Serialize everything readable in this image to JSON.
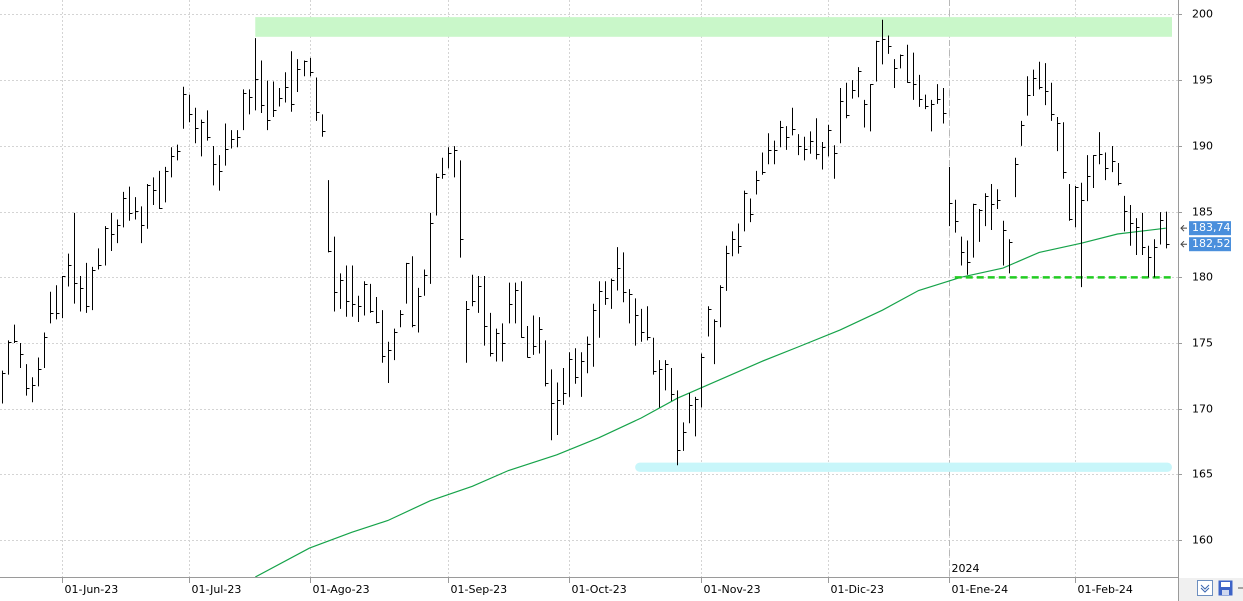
{
  "chart_data": {
    "type": "ohlc",
    "categories": [
      "2023-05-17",
      "2023-05-18",
      "2023-05-19",
      "2023-05-22",
      "2023-05-23",
      "2023-05-24",
      "2023-05-25",
      "2023-05-26",
      "2023-05-30",
      "2023-05-31",
      "2023-06-01",
      "2023-06-02",
      "2023-06-05",
      "2023-06-06",
      "2023-06-07",
      "2023-06-08",
      "2023-06-09",
      "2023-06-12",
      "2023-06-13",
      "2023-06-14",
      "2023-06-15",
      "2023-06-16",
      "2023-06-20",
      "2023-06-21",
      "2023-06-22",
      "2023-06-23",
      "2023-06-26",
      "2023-06-27",
      "2023-06-28",
      "2023-06-29",
      "2023-06-30",
      "2023-07-03",
      "2023-07-05",
      "2023-07-06",
      "2023-07-07",
      "2023-07-10",
      "2023-07-11",
      "2023-07-12",
      "2023-07-13",
      "2023-07-14",
      "2023-07-17",
      "2023-07-18",
      "2023-07-19",
      "2023-07-20",
      "2023-07-21",
      "2023-07-24",
      "2023-07-25",
      "2023-07-26",
      "2023-07-27",
      "2023-07-28",
      "2023-07-31",
      "2023-08-01",
      "2023-08-02",
      "2023-08-03",
      "2023-08-04",
      "2023-08-07",
      "2023-08-08",
      "2023-08-09",
      "2023-08-10",
      "2023-08-11",
      "2023-08-14",
      "2023-08-15",
      "2023-08-16",
      "2023-08-17",
      "2023-08-18",
      "2023-08-21",
      "2023-08-22",
      "2023-08-23",
      "2023-08-24",
      "2023-08-25",
      "2023-08-28",
      "2023-08-29",
      "2023-08-30",
      "2023-08-31",
      "2023-09-01",
      "2023-09-05",
      "2023-09-06",
      "2023-09-07",
      "2023-09-08",
      "2023-09-11",
      "2023-09-12",
      "2023-09-13",
      "2023-09-14",
      "2023-09-15",
      "2023-09-18",
      "2023-09-19",
      "2023-09-20",
      "2023-09-21",
      "2023-09-22",
      "2023-09-25",
      "2023-09-26",
      "2023-09-27",
      "2023-09-28",
      "2023-09-29",
      "2023-10-02",
      "2023-10-03",
      "2023-10-04",
      "2023-10-05",
      "2023-10-06",
      "2023-10-09",
      "2023-10-10",
      "2023-10-11",
      "2023-10-12",
      "2023-10-13",
      "2023-10-16",
      "2023-10-17",
      "2023-10-18",
      "2023-10-19",
      "2023-10-20",
      "2023-10-23",
      "2023-10-24",
      "2023-10-25",
      "2023-10-26",
      "2023-10-27",
      "2023-10-30",
      "2023-10-31",
      "2023-11-01",
      "2023-11-02",
      "2023-11-03",
      "2023-11-06",
      "2023-11-07",
      "2023-11-08",
      "2023-11-09",
      "2023-11-10",
      "2023-11-13",
      "2023-11-14",
      "2023-11-15",
      "2023-11-16",
      "2023-11-17",
      "2023-11-20",
      "2023-11-21",
      "2023-11-22",
      "2023-11-24",
      "2023-11-27",
      "2023-11-28",
      "2023-11-29",
      "2023-11-30",
      "2023-12-01",
      "2023-12-04",
      "2023-12-05",
      "2023-12-06",
      "2023-12-07",
      "2023-12-08",
      "2023-12-11",
      "2023-12-12",
      "2023-12-13",
      "2023-12-14",
      "2023-12-15",
      "2023-12-18",
      "2023-12-19",
      "2023-12-20",
      "2023-12-21",
      "2023-12-22",
      "2023-12-26",
      "2023-12-27",
      "2023-12-28",
      "2023-12-29",
      "2024-01-02",
      "2024-01-03",
      "2024-01-04",
      "2024-01-05",
      "2024-01-08",
      "2024-01-09",
      "2024-01-10",
      "2024-01-11",
      "2024-01-12",
      "2024-01-16",
      "2024-01-17",
      "2024-01-18",
      "2024-01-19",
      "2024-01-22",
      "2024-01-23",
      "2024-01-24",
      "2024-01-25",
      "2024-01-26",
      "2024-01-29",
      "2024-01-30",
      "2024-01-31",
      "2024-02-01",
      "2024-02-02",
      "2024-02-05",
      "2024-02-06",
      "2024-02-07",
      "2024-02-08",
      "2024-02-09",
      "2024-02-12",
      "2024-02-13",
      "2024-02-14",
      "2024-02-15",
      "2024-02-16",
      "2024-02-20",
      "2024-02-21",
      "2024-02-22",
      "2024-02-23"
    ],
    "high": [
      172.9,
      175.2,
      176.4,
      175.0,
      173.4,
      172.4,
      173.9,
      175.8,
      178.9,
      179.4,
      180.1,
      181.8,
      184.9,
      180.1,
      181.1,
      180.8,
      182.2,
      183.9,
      184.9,
      184.4,
      186.5,
      186.9,
      186.1,
      185.4,
      187.1,
      187.6,
      188.1,
      188.4,
      189.9,
      190.1,
      194.5,
      193.9,
      192.9,
      192.0,
      192.7,
      189.99,
      189.3,
      191.7,
      191.2,
      191.2,
      194.3,
      194.3,
      198.2,
      196.5,
      194.97,
      194.9,
      194.4,
      195.6,
      197.2,
      196.6,
      196.5,
      196.7,
      195.2,
      192.4,
      187.4,
      183.1,
      180.3,
      180.9,
      180.9,
      178.6,
      179.7,
      179.5,
      178.5,
      177.5,
      175.1,
      176.1,
      177.5,
      181.1,
      181.6,
      179.2,
      180.6,
      184.9,
      187.9,
      189.1,
      189.9,
      189.98,
      188.9,
      178.2,
      180.2,
      180.1,
      180.1,
      177.3,
      176.1,
      176.5,
      179.6,
      179.6,
      179.7,
      176.3,
      177.1,
      176.97,
      175.2,
      173.0,
      172.0,
      173.1,
      174.3,
      174.6,
      174.3,
      175.5,
      177.99,
      179.7,
      179.7,
      179.9,
      182.3,
      181.9,
      179.1,
      178.4,
      177.6,
      177.8,
      175.4,
      173.7,
      173.7,
      173.1,
      171.4,
      168.96,
      171.2,
      170.9,
      174.2,
      177.8,
      176.8,
      179.4,
      182.4,
      183.5,
      184.1,
      186.6,
      186.0,
      188.1,
      189.5,
      190.96,
      190.4,
      191.9,
      191.5,
      192.9,
      190.9,
      190.7,
      191.1,
      192.1,
      190.3,
      191.6,
      190.05,
      194.4,
      194.8,
      195.0,
      195.99,
      193.5,
      194.7,
      198.0,
      199.6,
      198.4,
      196.6,
      196.95,
      197.7,
      197.1,
      195.4,
      193.9,
      193.5,
      194.7,
      194.4,
      188.4,
      185.9,
      183.1,
      182.8,
      185.6,
      185.2,
      186.4,
      187.1,
      186.7,
      184.3,
      182.9,
      189.1,
      191.9,
      195.3,
      195.8,
      196.4,
      196.3,
      194.8,
      192.2,
      191.8,
      187.1,
      186.95,
      187.2,
      189.3,
      189.3,
      191.05,
      189.5,
      189.99,
      188.7,
      186.2,
      185.5,
      184.5,
      184.9,
      182.4,
      182.9,
      184.96,
      185.0
    ],
    "low": [
      170.4,
      172.6,
      175.0,
      173.1,
      171.0,
      170.5,
      171.7,
      173.1,
      176.5,
      176.8,
      176.9,
      179.3,
      178.0,
      177.4,
      177.3,
      177.5,
      180.6,
      180.9,
      182.0,
      182.6,
      183.8,
      184.3,
      184.4,
      182.6,
      183.7,
      185.5,
      185.2,
      185.7,
      187.6,
      188.9,
      191.3,
      191.8,
      190.2,
      189.2,
      190.4,
      187.0,
      186.6,
      188.5,
      189.8,
      189.9,
      191.2,
      192.4,
      192.7,
      192.5,
      191.2,
      192.2,
      193.0,
      193.3,
      192.6,
      194.1,
      195.3,
      195.3,
      191.9,
      190.7,
      181.9,
      177.4,
      177.6,
      177.0,
      177.0,
      176.6,
      177.1,
      177.3,
      176.5,
      173.5,
      171.96,
      173.7,
      176.2,
      178.0,
      176.2,
      175.8,
      178.6,
      179.5,
      184.7,
      187.5,
      188.3,
      187.6,
      181.5,
      173.5,
      177.8,
      177.3,
      174.8,
      173.98,
      173.6,
      173.6,
      176.5,
      176.5,
      175.4,
      173.9,
      174.1,
      174.2,
      171.7,
      167.6,
      168.0,
      170.3,
      170.9,
      171.9,
      170.9,
      172.7,
      173.2,
      175.4,
      177.9,
      177.6,
      179.0,
      178.1,
      176.5,
      174.8,
      175.1,
      175.2,
      172.6,
      170.1,
      171.4,
      170.6,
      165.7,
      166.8,
      168.9,
      167.9,
      170.1,
      175.5,
      173.4,
      176.2,
      178.97,
      181.6,
      181.8,
      183.5,
      184.2,
      186.3,
      187.8,
      188.6,
      188.6,
      189.9,
      189.7,
      190.8,
      189.3,
      188.9,
      189.4,
      188.97,
      188.2,
      189.2,
      187.5,
      190.2,
      192.1,
      193.6,
      193.7,
      191.4,
      191.1,
      194.9,
      196.2,
      197.0,
      194.4,
      195.9,
      194.8,
      193.5,
      192.97,
      192.8,
      191.1,
      193.2,
      191.7,
      183.9,
      183.4,
      180.9,
      180.2,
      181.5,
      182.7,
      183.9,
      183.6,
      185.2,
      180.9,
      180.3,
      186.1,
      190.0,
      192.3,
      193.8,
      194.3,
      193.1,
      191.9,
      189.6,
      187.5,
      184.3,
      183.8,
      179.25,
      185.8,
      186.8,
      188.6,
      187.4,
      188.0,
      187.0,
      183.5,
      182.4,
      181.7,
      181.7,
      180.0,
      180.0,
      182.5,
      182.2
    ],
    "close": [
      172.69,
      175.05,
      175.16,
      174.2,
      171.56,
      171.84,
      172.99,
      175.43,
      177.3,
      177.25,
      180.09,
      180.95,
      179.58,
      179.21,
      177.82,
      180.57,
      180.96,
      183.79,
      183.31,
      183.95,
      186.01,
      184.92,
      185.01,
      183.96,
      187,
      186.68,
      185.27,
      188.06,
      189.25,
      189.59,
      193.97,
      192.46,
      191.33,
      191.81,
      190.68,
      188.61,
      188.08,
      189.77,
      190.54,
      190.69,
      193.99,
      193.73,
      195.1,
      193.13,
      191.94,
      192.75,
      193.62,
      194.5,
      193.22,
      195.83,
      196.45,
      195.61,
      192.58,
      191.17,
      181.99,
      178.85,
      179.8,
      178.19,
      177.97,
      177.79,
      179.46,
      177.45,
      176.57,
      174,
      174.49,
      175.84,
      177.23,
      181.12,
      176.38,
      178.61,
      180.19,
      184.12,
      187.65,
      187.87,
      189.46,
      189.7,
      182.91,
      177.56,
      178.18,
      179.36,
      176.3,
      174.21,
      175.74,
      175.01,
      177.97,
      179.07,
      175.49,
      173.93,
      174.79,
      176.08,
      171.96,
      170.43,
      170.69,
      171.21,
      173.75,
      172.4,
      173.66,
      174.91,
      177.49,
      178.99,
      178.39,
      179.8,
      180.71,
      178.85,
      178.72,
      177.15,
      175.84,
      175.46,
      172.88,
      173,
      173.44,
      171.1,
      166.89,
      168.22,
      170.29,
      170.77,
      173.97,
      177.57,
      176.65,
      179.23,
      181.82,
      182.89,
      182.41,
      186.4,
      184.8,
      187.44,
      188.01,
      189.71,
      189.69,
      191.45,
      190.64,
      191.31,
      189.97,
      189.79,
      190.4,
      189.37,
      189.95,
      191.24,
      189.43,
      193.42,
      192.32,
      194.27,
      195.71,
      193.18,
      194.71,
      197.96,
      198.11,
      197.57,
      195.89,
      196.94,
      194.83,
      194.68,
      193.6,
      193.05,
      193.15,
      193.58,
      192.53,
      185.64,
      184.25,
      181.91,
      181.18,
      185.56,
      185.14,
      186.19,
      185.59,
      185.92,
      183.63,
      182.68,
      188.63,
      191.56,
      193.89,
      195.18,
      194.5,
      194.17,
      192.42,
      191.73,
      188.04,
      184.4,
      186.86,
      185.85,
      187.68,
      189.3,
      189.41,
      188.32,
      188.85,
      187.15,
      185.04,
      184.15,
      183.86,
      182.31,
      181.56,
      182.32,
      184.37,
      182.52
    ],
    "bar_color": "#000000",
    "ylim": [
      157.2,
      201.1
    ],
    "yticks": [
      160,
      165,
      170,
      175,
      180,
      185,
      190,
      195,
      200
    ],
    "xticks": [
      {
        "value": "2023-06-01",
        "label": "01-Jun-23"
      },
      {
        "value": "2023-07-03",
        "label": "01-Jul-23"
      },
      {
        "value": "2023-08-01",
        "label": "01-Ago-23"
      },
      {
        "value": "2023-09-01",
        "label": "01-Sep-23"
      },
      {
        "value": "2023-10-02",
        "label": "01-Oct-23"
      },
      {
        "value": "2023-11-01",
        "label": "01-Nov-23"
      },
      {
        "value": "2023-12-01",
        "label": "01-Dic-23"
      },
      {
        "value": "2024-01-02",
        "label": "01-Ene-24"
      },
      {
        "value": "2024-02-01",
        "label": "01-Feb-24"
      }
    ],
    "grid": true,
    "year_marker": {
      "value": "2024-01-02",
      "label": "2024"
    },
    "moving_average": {
      "color": "#16a34a",
      "x": [
        "2023-07-19",
        "2023-08-01",
        "2023-08-10",
        "2023-08-18",
        "2023-08-29",
        "2023-09-08",
        "2023-09-18",
        "2023-09-28",
        "2023-10-09",
        "2023-10-18",
        "2023-10-26",
        "2023-11-06",
        "2023-11-15",
        "2023-11-24",
        "2023-12-05",
        "2023-12-14",
        "2023-12-22",
        "2024-01-04",
        "2024-01-16",
        "2024-01-24",
        "2024-02-02",
        "2024-02-12",
        "2024-02-23"
      ],
      "values": [
        157.2,
        159.4,
        160.6,
        161.5,
        163.0,
        164.1,
        165.3,
        166.5,
        167.8,
        169.3,
        170.8,
        172.2,
        173.6,
        174.7,
        176.0,
        177.5,
        179.0,
        180.0,
        180.7,
        181.9,
        182.6,
        183.3,
        183.74
      ]
    },
    "zones": [
      {
        "range": [
          198.3,
          199.8
        ],
        "start": "2023-07-19",
        "color": "#c9f7c9"
      },
      {
        "range": [
          165.2,
          165.9
        ],
        "start": "2023-10-17",
        "color": "#c8f6fa"
      }
    ],
    "support_line": {
      "value": 180,
      "start": "2024-01-03",
      "color": "#22cc22"
    },
    "price_labels": [
      {
        "value": 183.74,
        "label": "183,74"
      },
      {
        "value": 182.52,
        "label": "182,52"
      }
    ],
    "price_label_color": "#4a8fdc"
  }
}
